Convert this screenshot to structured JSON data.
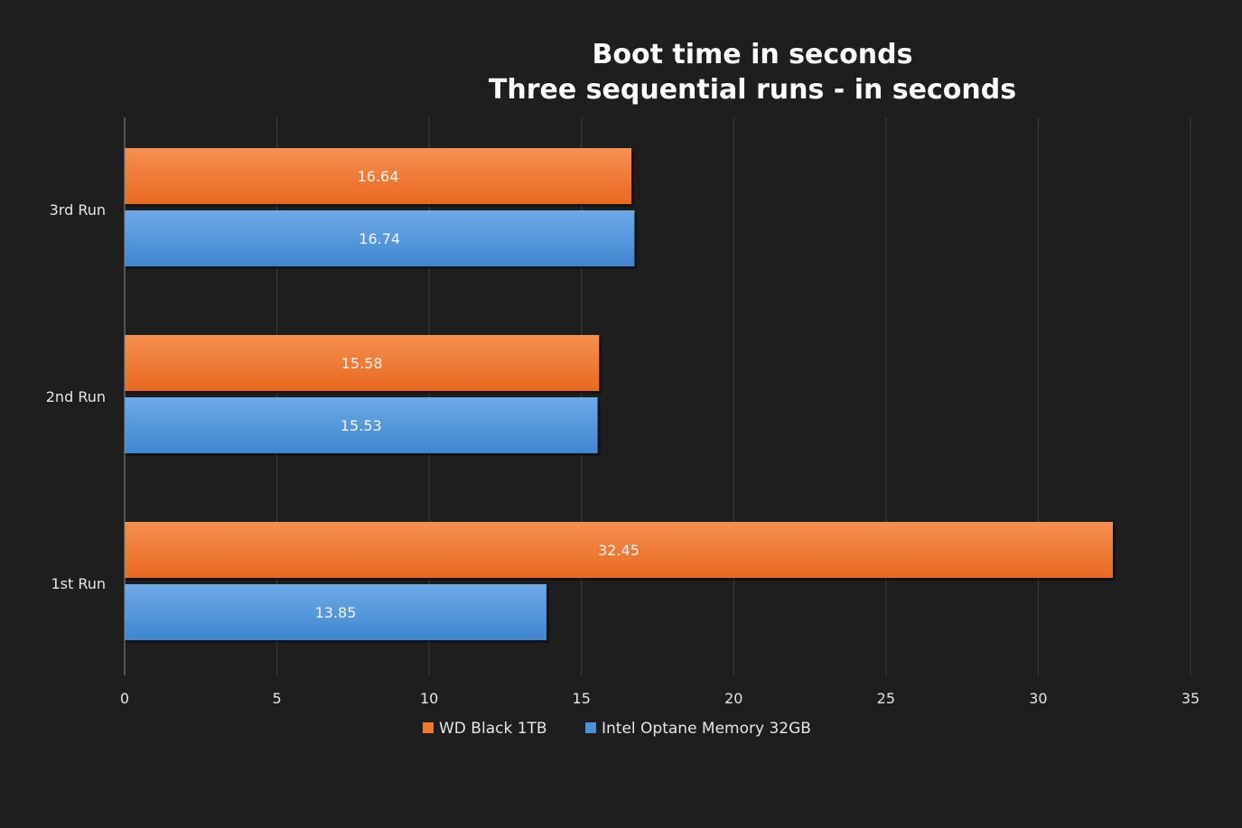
{
  "chart_data": {
    "type": "bar",
    "orientation": "horizontal",
    "title": "Boot time in seconds",
    "subtitle": "Three sequential runs - in seconds",
    "categories": [
      "3rd Run",
      "2nd Run",
      "1st Run"
    ],
    "series": [
      {
        "name": "WD Black 1TB",
        "color": "#ef7a2e",
        "values": [
          16.64,
          15.58,
          32.45
        ]
      },
      {
        "name": "Intel Optane Memory 32GB",
        "color": "#4d92d8",
        "values": [
          16.74,
          15.53,
          13.85
        ]
      }
    ],
    "xlim": [
      0,
      35
    ],
    "xticks": [
      0,
      5,
      10,
      15,
      20,
      25,
      30,
      35
    ],
    "grid": true,
    "legend_position": "bottom"
  }
}
